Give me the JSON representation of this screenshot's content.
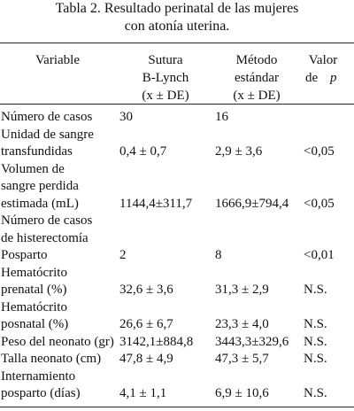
{
  "title": [
    "Tabla 2. Resultado perinatal de las mujeres",
    "con atonía uterina."
  ],
  "table": {
    "header": {
      "variable": "Variable",
      "sutura": [
        "Sutura",
        "B-Lynch",
        "(x ± DE)"
      ],
      "metodo": [
        "Método",
        "estándar",
        "(x ± DE)"
      ],
      "valor": [
        "Valor",
        "de",
        "p"
      ]
    },
    "rows": [
      {
        "variable": [
          "Número de casos"
        ],
        "sutura": "30",
        "metodo": "16"
      },
      {
        "variable": [
          "Unidad de sangre",
          "transfundidas"
        ],
        "sutura": "0,4 ± 0,7",
        "metodo": "2,9  ± 3,6",
        "valor": "<0,05"
      },
      {
        "variable": [
          "Volumen de",
          "sangre perdida",
          "estimada (mL)"
        ],
        "sutura": "1144,4±311,7",
        "metodo": "1666,9±794,4",
        "valor": "<0,05"
      },
      {
        "variable": [
          "Número de casos",
          "de histerectomía",
          "Posparto"
        ],
        "sutura": "2",
        "metodo": "8",
        "valor": "<0,01"
      },
      {
        "variable": [
          "Hematócrito",
          "prenatal (%)"
        ],
        "sutura": "32,6 ± 3,6",
        "metodo": "31,3 ± 2,9",
        "valor": "N.S."
      },
      {
        "variable": [
          "Hematócrito",
          "posnatal (%)"
        ],
        "sutura": "26,6 ± 6,7",
        "metodo": "23,3 ± 4,0",
        "valor": "N.S."
      },
      {
        "variable": [
          "Peso del  neonato (gr)"
        ],
        "sutura": "3142,1±884,8",
        "metodo": "3443,3±329,6",
        "valor": "N.S."
      },
      {
        "variable": [
          "Talla neonato (cm)"
        ],
        "sutura": "47,8 ± 4,9",
        "metodo": "47,3 ± 5,7",
        "valor": "N.S."
      },
      {
        "variable": [
          "Internamiento",
          "posparto (días)"
        ],
        "sutura": "4,1 ± 1,1",
        "metodo": "6,9 ± 10,6",
        "valor": "N.S."
      }
    ]
  }
}
